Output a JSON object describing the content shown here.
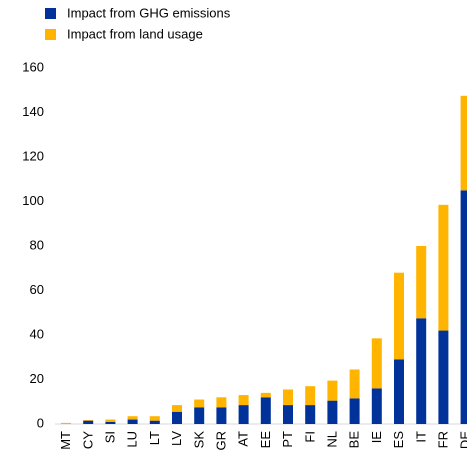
{
  "chart_data": {
    "type": "stacked_bar",
    "categories": [
      "MT",
      "CY",
      "SI",
      "LU",
      "LT",
      "LV",
      "SK",
      "GR",
      "AT",
      "EE",
      "PT",
      "FI",
      "NL",
      "BE",
      "IE",
      "ES",
      "IT",
      "FR",
      "DE"
    ],
    "series": [
      {
        "name": "Impact from GHG emissions",
        "color": "#003299",
        "values": [
          0,
          1.5,
          1,
          2,
          1.5,
          5.5,
          7.5,
          7.5,
          8.5,
          12,
          8.5,
          8.5,
          10.5,
          11.5,
          16,
          29,
          47.5,
          42,
          105
        ]
      },
      {
        "name": "Impact from land usage",
        "color": "#ffb400",
        "values": [
          0.5,
          0.3,
          1,
          1.5,
          2,
          3,
          3.5,
          4.5,
          4.5,
          2,
          7,
          8.5,
          9,
          13,
          22.5,
          39,
          32.5,
          56.5,
          42.5
        ]
      }
    ],
    "ylim": [
      0,
      160
    ],
    "yticks": [
      0,
      20,
      40,
      60,
      80,
      100,
      120,
      140,
      160
    ]
  }
}
